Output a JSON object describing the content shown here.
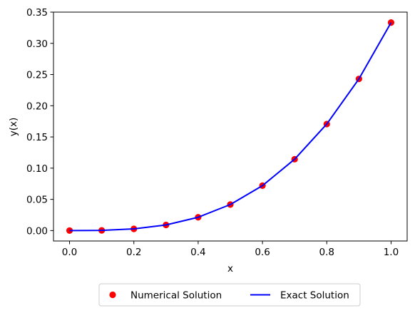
{
  "chart_data": {
    "type": "line",
    "xlabel": "x",
    "ylabel": "y(x)",
    "xlim": [
      -0.05,
      1.05
    ],
    "ylim": [
      -0.0167,
      0.35
    ],
    "grid": false,
    "legend_position": "bottom-center",
    "x_ticks": [
      0.0,
      0.2,
      0.4,
      0.6,
      0.8,
      1.0
    ],
    "x_tick_labels": [
      "0.0",
      "0.2",
      "0.4",
      "0.6",
      "0.8",
      "1.0"
    ],
    "y_ticks": [
      0.0,
      0.05,
      0.1,
      0.15,
      0.2,
      0.25,
      0.3,
      0.35
    ],
    "y_tick_labels": [
      "0.00",
      "0.05",
      "0.10",
      "0.15",
      "0.20",
      "0.25",
      "0.30",
      "0.35"
    ],
    "series": [
      {
        "name": "Numerical Solution",
        "kind": "scatter",
        "color": "#ff0000",
        "x": [
          0.0,
          0.1,
          0.2,
          0.3,
          0.4,
          0.5,
          0.6,
          0.7,
          0.8,
          0.9,
          1.0
        ],
        "y": [
          0.0,
          0.0003,
          0.0027,
          0.009,
          0.0213,
          0.0417,
          0.072,
          0.1143,
          0.1707,
          0.243,
          0.3333
        ]
      },
      {
        "name": "Exact Solution",
        "kind": "line",
        "color": "#0000ff",
        "x": [
          0.0,
          0.1,
          0.2,
          0.3,
          0.4,
          0.5,
          0.6,
          0.7,
          0.8,
          0.9,
          1.0
        ],
        "y": [
          0.0,
          0.0003,
          0.0027,
          0.009,
          0.0213,
          0.0417,
          0.072,
          0.1143,
          0.1707,
          0.243,
          0.3333
        ]
      }
    ]
  }
}
